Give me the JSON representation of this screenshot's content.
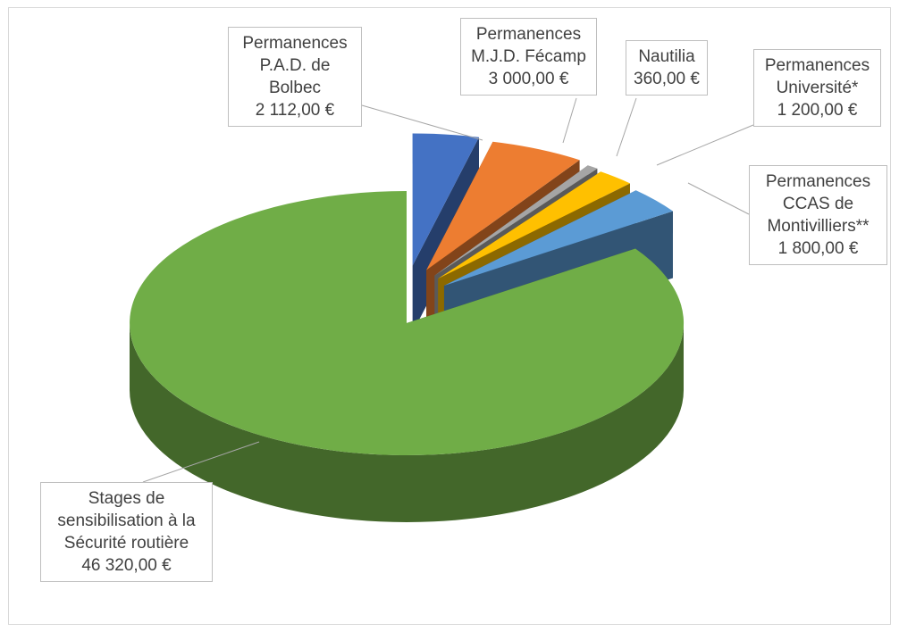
{
  "chart_data": {
    "type": "pie",
    "three_d": true,
    "categories": [
      "Permanences P.A.D. de Bolbec",
      "Permanences M.J.D. Fécamp",
      "Nautilia",
      "Permanences Université*",
      "Permanences CCAS de Montivilliers**",
      "Stages de sensibilisation à la Sécurité routière"
    ],
    "values": [
      2112,
      3000,
      360,
      1200,
      1800,
      46320
    ],
    "value_labels": [
      "2 112,00 €",
      "3 000,00 €",
      "360,00 €",
      "1 200,00 €",
      "1 800,00 €",
      "46 320,00 €"
    ],
    "colors": [
      "#4472c4",
      "#ed7d31",
      "#a5a5a5",
      "#ffc000",
      "#5b9bd5",
      "#70ad47"
    ],
    "exploded": [
      true,
      true,
      true,
      true,
      true,
      false
    ]
  }
}
